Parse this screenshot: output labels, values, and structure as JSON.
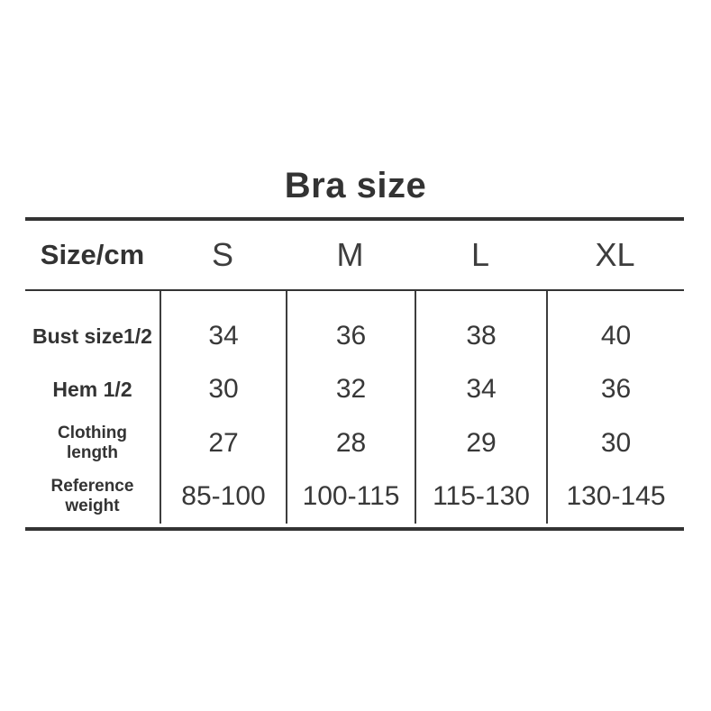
{
  "title": "Bra size",
  "colors": {
    "background": "#ffffff",
    "text": "#383838",
    "heading_text": "#333333",
    "rule_thick": "#333333",
    "rule_thin": "#3d3d3d"
  },
  "table": {
    "header": {
      "label": "Size/cm",
      "sizes": [
        "S",
        "M",
        "L",
        "XL"
      ]
    },
    "rows": [
      {
        "label": "Bust size1/2",
        "values": [
          "34",
          "36",
          "38",
          "40"
        ]
      },
      {
        "label": "Hem 1/2",
        "values": [
          "30",
          "32",
          "34",
          "36"
        ]
      },
      {
        "label": "Clothing\nlength",
        "values": [
          "27",
          "28",
          "29",
          "30"
        ]
      },
      {
        "label": "Reference\nweight",
        "values": [
          "85-100",
          "100-115",
          "115-130",
          "130-145"
        ]
      }
    ]
  },
  "chart_data": {
    "type": "table",
    "title": "Bra size",
    "unit": "cm",
    "columns": [
      "Size/cm",
      "S",
      "M",
      "L",
      "XL"
    ],
    "rows": [
      [
        "Bust size1/2",
        "34",
        "36",
        "38",
        "40"
      ],
      [
        "Hem 1/2",
        "30",
        "32",
        "34",
        "36"
      ],
      [
        "Clothing length",
        "27",
        "28",
        "29",
        "30"
      ],
      [
        "Reference weight",
        "85-100",
        "100-115",
        "115-130",
        "130-145"
      ]
    ]
  }
}
